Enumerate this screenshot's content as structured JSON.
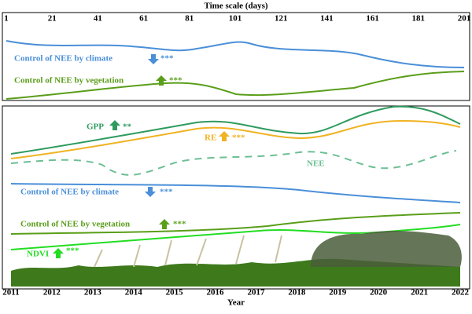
{
  "top_panel": {
    "axis_title": "Time scale (days)",
    "ticks": [
      1,
      21,
      41,
      61,
      81,
      101,
      121,
      141,
      161,
      181,
      201
    ],
    "climate": {
      "text": "Control of NEE by climate",
      "significance": "***"
    },
    "vegetation": {
      "text": "Control of NEE by vegetation",
      "significance": "***"
    }
  },
  "bottom_panel": {
    "gpp": {
      "text": "GPP",
      "significance": "**"
    },
    "re": {
      "text": "RE",
      "significance": "***"
    },
    "nee": {
      "text": "NEE"
    },
    "climate": {
      "text": "Control of NEE by climate",
      "significance": "***"
    },
    "vegetation": {
      "text": "Control of NEE by vegetation",
      "significance": "***"
    },
    "ndvi": {
      "text": "NDVI",
      "significance": "***"
    },
    "years": [
      2011,
      2012,
      2013,
      2014,
      2015,
      2016,
      2017,
      2018,
      2019,
      2020,
      2021,
      2022
    ],
    "axis_title": "Year"
  }
}
